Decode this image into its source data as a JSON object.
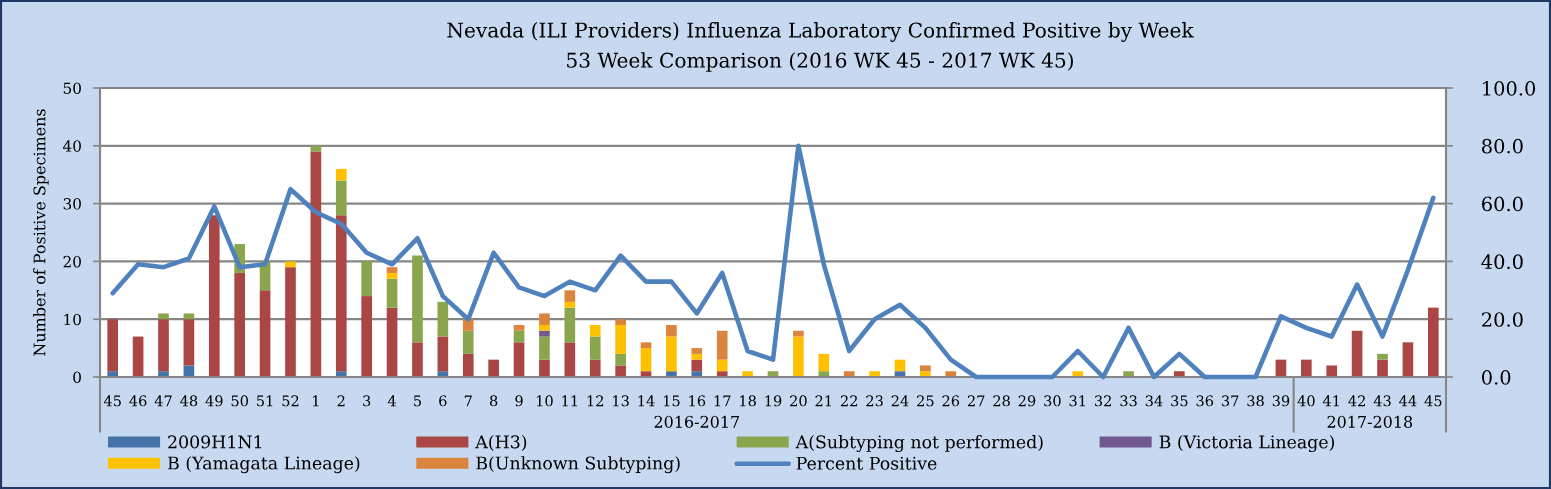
{
  "chart_data": {
    "type": "bar",
    "title": "Nevada (ILI Providers) Influenza Laboratory Confirmed Positive by Week",
    "subtitle": "53 Week Comparison (2016 WK 45 - 2017 WK 45)",
    "ylabel": "Number of Positive Specimens",
    "categories": [
      "45",
      "46",
      "47",
      "48",
      "49",
      "50",
      "51",
      "52",
      "1",
      "2",
      "3",
      "4",
      "5",
      "6",
      "7",
      "8",
      "9",
      "10",
      "11",
      "12",
      "13",
      "14",
      "15",
      "16",
      "17",
      "18",
      "19",
      "20",
      "21",
      "22",
      "23",
      "24",
      "25",
      "26",
      "27",
      "28",
      "29",
      "30",
      "31",
      "32",
      "33",
      "34",
      "35",
      "36",
      "37",
      "38",
      "39",
      "40",
      "41",
      "42",
      "43",
      "44",
      "45"
    ],
    "stacked": true,
    "series": [
      {
        "name": "2009H1N1",
        "color": "#4572a7",
        "values": [
          1,
          0,
          1,
          2,
          0,
          0,
          0,
          0,
          0,
          1,
          0,
          0,
          0,
          1,
          0,
          0,
          0,
          0,
          0,
          0,
          0,
          0,
          1,
          1,
          0,
          0,
          0,
          0,
          0,
          0,
          0,
          1,
          0,
          0,
          0,
          0,
          0,
          0,
          0,
          0,
          0,
          0,
          0,
          0,
          0,
          0,
          0,
          0,
          0,
          0,
          0,
          0,
          0
        ]
      },
      {
        "name": "A(H3)",
        "color": "#aa4643",
        "values": [
          9,
          7,
          9,
          8,
          28,
          18,
          15,
          19,
          39,
          27,
          14,
          12,
          6,
          6,
          4,
          3,
          6,
          3,
          6,
          3,
          2,
          1,
          0,
          2,
          1,
          0,
          0,
          0,
          0,
          0,
          0,
          0,
          0,
          0,
          0,
          0,
          0,
          0,
          0,
          0,
          0,
          0,
          1,
          0,
          0,
          0,
          3,
          3,
          2,
          8,
          3,
          6,
          12
        ]
      },
      {
        "name": "A(Subtyping not performed)",
        "color": "#89a54e",
        "values": [
          0,
          0,
          1,
          1,
          0,
          5,
          5,
          0,
          1,
          6,
          6,
          5,
          15,
          6,
          4,
          0,
          2,
          4,
          6,
          4,
          2,
          0,
          0,
          0,
          0,
          0,
          1,
          0,
          1,
          0,
          0,
          0,
          0,
          0,
          0,
          0,
          0,
          0,
          0,
          0,
          1,
          0,
          0,
          0,
          0,
          0,
          0,
          0,
          0,
          0,
          1,
          0,
          0
        ]
      },
      {
        "name": "B (Victoria Lineage)",
        "color": "#71588f",
        "values": [
          0,
          0,
          0,
          0,
          0,
          0,
          0,
          0,
          0,
          0,
          0,
          0,
          0,
          0,
          0,
          0,
          0,
          1,
          0,
          0,
          0,
          0,
          0,
          0,
          0,
          0,
          0,
          0,
          0,
          0,
          0,
          0,
          0,
          0,
          0,
          0,
          0,
          0,
          0,
          0,
          0,
          0,
          0,
          0,
          0,
          0,
          0,
          0,
          0,
          0,
          0,
          0,
          0
        ]
      },
      {
        "name": "B (Yamagata Lineage)",
        "color": "#ffc000",
        "values": [
          0,
          0,
          0,
          0,
          0,
          0,
          0,
          1,
          0,
          2,
          0,
          1,
          0,
          0,
          0,
          0,
          0,
          1,
          1,
          2,
          5,
          4,
          6,
          1,
          2,
          1,
          0,
          7,
          3,
          0,
          1,
          2,
          1,
          0,
          0,
          0,
          0,
          0,
          1,
          0,
          0,
          0,
          0,
          0,
          0,
          0,
          0,
          0,
          0,
          0,
          0,
          0,
          0
        ]
      },
      {
        "name": "B(Unknown Subtyping)",
        "color": "#db843d",
        "values": [
          0,
          0,
          0,
          0,
          0,
          0,
          0,
          0,
          0,
          0,
          0,
          1,
          0,
          0,
          2,
          0,
          1,
          2,
          2,
          0,
          1,
          1,
          2,
          1,
          5,
          0,
          0,
          1,
          0,
          1,
          0,
          0,
          1,
          1,
          0,
          0,
          0,
          0,
          0,
          0,
          0,
          0,
          0,
          0,
          0,
          0,
          0,
          0,
          0,
          0,
          0,
          0,
          0
        ]
      },
      {
        "name": "Percent Positive",
        "type": "line",
        "axis": "y2",
        "color": "#4f81bd",
        "values": [
          29,
          39,
          38,
          41,
          59,
          38,
          39,
          65,
          57,
          53,
          43,
          39,
          48,
          28,
          20,
          43,
          31,
          28,
          33,
          30,
          42,
          33,
          33,
          22,
          36,
          9,
          6,
          80,
          39,
          9,
          20,
          25,
          17,
          6,
          0,
          0,
          0,
          0,
          9,
          0,
          17,
          0,
          8,
          0,
          0,
          0,
          21,
          17,
          14,
          32,
          14,
          37,
          62
        ]
      }
    ],
    "ylim": [
      0,
      50
    ],
    "yticks": [
      0,
      10,
      20,
      30,
      40,
      50
    ],
    "y2lim": [
      0,
      100
    ],
    "y2ticks": [
      {
        "value": 0,
        "label": "0.0"
      },
      {
        "value": 20,
        "label": "20.0"
      },
      {
        "value": 40,
        "label": "40.0"
      },
      {
        "value": 60,
        "label": "60.0"
      },
      {
        "value": 80,
        "label": "80.0"
      },
      {
        "value": 100,
        "label": "100.0"
      }
    ],
    "grid": "y",
    "legend": "bottom",
    "annotations": [
      "2016-2017",
      "2017-2018"
    ]
  }
}
